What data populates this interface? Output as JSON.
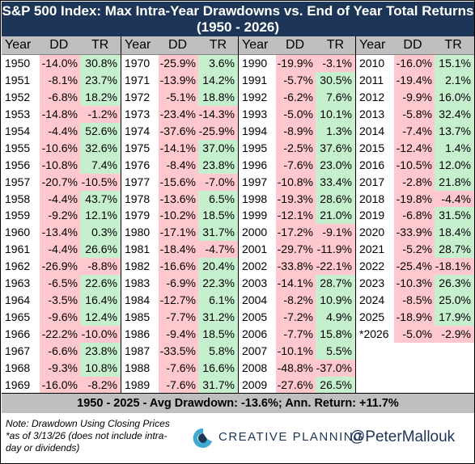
{
  "title": {
    "line1": "S&P 500 Index: Max Intra-Year Drawdowns vs. End of Year Total Returns",
    "line2": "(1950 - 2026)"
  },
  "headers": {
    "year": "Year",
    "dd": "DD",
    "tr": "TR"
  },
  "colors": {
    "title_bg": "#1d3557",
    "negative": "#ffc7ce",
    "positive": "#c6efce",
    "header_bg": "#bfbfbf",
    "brand": "#1d3557"
  },
  "chart_data": {
    "type": "table",
    "columns": [
      "Year",
      "DD",
      "TR"
    ],
    "rows": [
      [
        "1950",
        "-14.0%",
        "30.8%"
      ],
      [
        "1951",
        "-8.1%",
        "23.7%"
      ],
      [
        "1952",
        "-6.8%",
        "18.2%"
      ],
      [
        "1953",
        "-14.8%",
        "-1.2%"
      ],
      [
        "1954",
        "-4.4%",
        "52.6%"
      ],
      [
        "1955",
        "-10.6%",
        "32.6%"
      ],
      [
        "1956",
        "-10.8%",
        "7.4%"
      ],
      [
        "1957",
        "-20.7%",
        "-10.5%"
      ],
      [
        "1958",
        "-4.4%",
        "43.7%"
      ],
      [
        "1959",
        "-9.2%",
        "12.1%"
      ],
      [
        "1960",
        "-13.4%",
        "0.3%"
      ],
      [
        "1961",
        "-4.4%",
        "26.6%"
      ],
      [
        "1962",
        "-26.9%",
        "-8.8%"
      ],
      [
        "1963",
        "-6.5%",
        "22.6%"
      ],
      [
        "1964",
        "-3.5%",
        "16.4%"
      ],
      [
        "1965",
        "-9.6%",
        "12.4%"
      ],
      [
        "1966",
        "-22.2%",
        "-10.0%"
      ],
      [
        "1967",
        "-6.6%",
        "23.8%"
      ],
      [
        "1968",
        "-9.3%",
        "10.8%"
      ],
      [
        "1969",
        "-16.0%",
        "-8.2%"
      ],
      [
        "1970",
        "-25.9%",
        "3.6%"
      ],
      [
        "1971",
        "-13.9%",
        "14.2%"
      ],
      [
        "1972",
        "-5.1%",
        "18.8%"
      ],
      [
        "1973",
        "-23.4%",
        "-14.3%"
      ],
      [
        "1974",
        "-37.6%",
        "-25.9%"
      ],
      [
        "1975",
        "-14.1%",
        "37.0%"
      ],
      [
        "1976",
        "-8.4%",
        "23.8%"
      ],
      [
        "1977",
        "-15.6%",
        "-7.0%"
      ],
      [
        "1978",
        "-13.6%",
        "6.5%"
      ],
      [
        "1979",
        "-10.2%",
        "18.5%"
      ],
      [
        "1980",
        "-17.1%",
        "31.7%"
      ],
      [
        "1981",
        "-18.4%",
        "-4.7%"
      ],
      [
        "1982",
        "-16.6%",
        "20.4%"
      ],
      [
        "1983",
        "-6.9%",
        "22.3%"
      ],
      [
        "1984",
        "-12.7%",
        "6.1%"
      ],
      [
        "1985",
        "-7.7%",
        "31.2%"
      ],
      [
        "1986",
        "-9.4%",
        "18.5%"
      ],
      [
        "1987",
        "-33.5%",
        "5.8%"
      ],
      [
        "1988",
        "-7.6%",
        "16.6%"
      ],
      [
        "1989",
        "-7.6%",
        "31.7%"
      ],
      [
        "1990",
        "-19.9%",
        "-3.1%"
      ],
      [
        "1991",
        "-5.7%",
        "30.5%"
      ],
      [
        "1992",
        "-6.2%",
        "7.6%"
      ],
      [
        "1993",
        "-5.0%",
        "10.1%"
      ],
      [
        "1994",
        "-8.9%",
        "1.3%"
      ],
      [
        "1995",
        "-2.5%",
        "37.6%"
      ],
      [
        "1996",
        "-7.6%",
        "23.0%"
      ],
      [
        "1997",
        "-10.8%",
        "33.4%"
      ],
      [
        "1998",
        "-19.3%",
        "28.6%"
      ],
      [
        "1999",
        "-12.1%",
        "21.0%"
      ],
      [
        "2000",
        "-17.2%",
        "-9.1%"
      ],
      [
        "2001",
        "-29.7%",
        "-11.9%"
      ],
      [
        "2002",
        "-33.8%",
        "-22.1%"
      ],
      [
        "2003",
        "-14.1%",
        "28.7%"
      ],
      [
        "2004",
        "-8.2%",
        "10.9%"
      ],
      [
        "2005",
        "-7.2%",
        "4.9%"
      ],
      [
        "2006",
        "-7.7%",
        "15.8%"
      ],
      [
        "2007",
        "-10.1%",
        "5.5%"
      ],
      [
        "2008",
        "-48.8%",
        "-37.0%"
      ],
      [
        "2009",
        "-27.6%",
        "26.5%"
      ],
      [
        "2010",
        "-16.0%",
        "15.1%"
      ],
      [
        "2011",
        "-19.4%",
        "2.1%"
      ],
      [
        "2012",
        "-9.9%",
        "16.0%"
      ],
      [
        "2013",
        "-5.8%",
        "32.4%"
      ],
      [
        "2014",
        "-7.4%",
        "13.7%"
      ],
      [
        "2015",
        "-12.4%",
        "1.4%"
      ],
      [
        "2016",
        "-10.5%",
        "12.0%"
      ],
      [
        "2017",
        "-2.8%",
        "21.8%"
      ],
      [
        "2018",
        "-19.8%",
        "-4.4%"
      ],
      [
        "2019",
        "-6.8%",
        "31.5%"
      ],
      [
        "2020",
        "-33.9%",
        "18.4%"
      ],
      [
        "2021",
        "-5.2%",
        "28.7%"
      ],
      [
        "2022",
        "-25.4%",
        "-18.1%"
      ],
      [
        "2023",
        "-10.3%",
        "26.3%"
      ],
      [
        "2024",
        "-8.5%",
        "25.0%"
      ],
      [
        "2025",
        "-18.9%",
        "17.9%"
      ],
      [
        "*2026",
        "-5.0%",
        "-2.9%"
      ]
    ]
  },
  "summary": "1950 - 2025 - Avg Drawdown: -13.6%; Ann. Return: +11.7%",
  "note": "Note: Drawdown Using Closing Prices *as of 3/13/26 (does not include intra-day or dividends)",
  "brand": "CREATIVE PLANNING",
  "handle": "@PeterMallouk",
  "logo_icon": "creative-planning-c-logo"
}
